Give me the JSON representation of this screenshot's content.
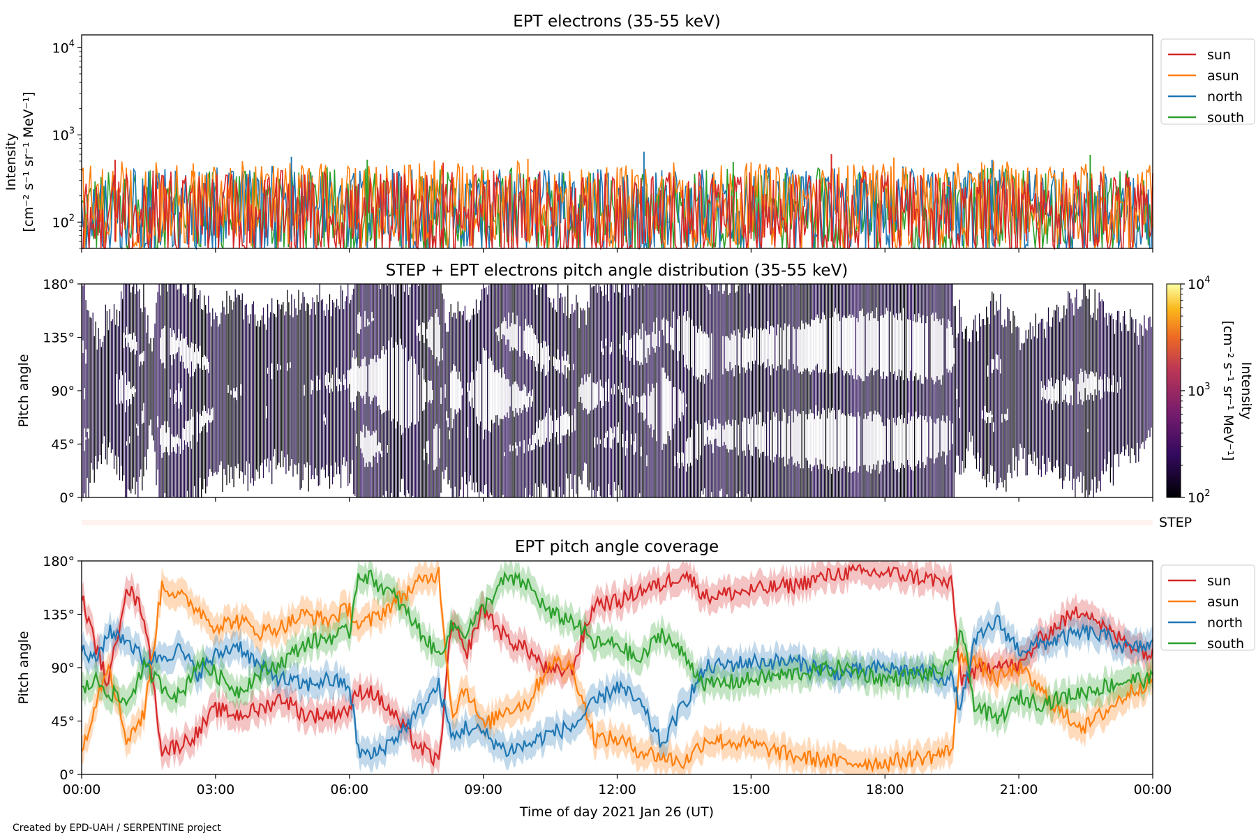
{
  "footer": {
    "credit": "Created by EPD-UAH / SERPENTINE project"
  },
  "colors": {
    "sun": "#d62728",
    "asun": "#ff7f0e",
    "north": "#1f77b4",
    "south": "#2ca02c"
  },
  "chart_data": [
    {
      "type": "line",
      "title": "EPT electrons (35-55 keV)",
      "ylabel": [
        "Intensity",
        "[cm⁻² s⁻¹ sr⁻¹ MeV⁻¹]"
      ],
      "yscale": "log",
      "ylim": [
        50,
        14000
      ],
      "yticks": [
        100,
        1000,
        10000
      ],
      "ytick_labels": [
        [
          "10",
          "2"
        ],
        [
          "10",
          "3"
        ],
        [
          "10",
          "4"
        ]
      ],
      "legend": "outside-right-top",
      "series": [
        {
          "name": "sun",
          "color": "#d62728",
          "baseline": 110,
          "spread": 0.55
        },
        {
          "name": "asun",
          "color": "#ff7f0e",
          "baseline": 150,
          "spread": 0.5
        },
        {
          "name": "north",
          "color": "#1f77b4",
          "baseline": 130,
          "spread": 0.5
        },
        {
          "name": "south",
          "color": "#2ca02c",
          "baseline": 125,
          "spread": 0.5
        }
      ],
      "draw_order": [
        "south",
        "north",
        "asun",
        "sun"
      ],
      "peak_points": [
        {
          "x": 0.75,
          "y": 520
        },
        {
          "x": 2.5,
          "y": 470
        },
        {
          "x": 4.7,
          "y": 560
        },
        {
          "x": 6.4,
          "y": 520
        },
        {
          "x": 8.1,
          "y": 480
        },
        {
          "x": 10.0,
          "y": 530
        },
        {
          "x": 12.6,
          "y": 640
        },
        {
          "x": 14.6,
          "y": 490
        },
        {
          "x": 16.8,
          "y": 600
        },
        {
          "x": 18.2,
          "y": 550
        },
        {
          "x": 20.4,
          "y": 520
        },
        {
          "x": 22.6,
          "y": 590
        }
      ]
    },
    {
      "type": "heatmap",
      "title": "STEP + EPT electrons pitch angle distribution (35-55 keV)",
      "ylabel": "Pitch angle",
      "ylim": [
        0,
        180
      ],
      "yticks": [
        0,
        45,
        90,
        135,
        180
      ],
      "ytick_labels": [
        "0°",
        "45°",
        "90°",
        "135°",
        "180°"
      ],
      "colorbar": {
        "label": [
          "Intensity",
          "[cm⁻² s⁻¹ sr⁻¹ MeV⁻¹]"
        ],
        "scale": "log",
        "range": [
          100,
          10000
        ],
        "tick_labels": [
          [
            "10",
            "2"
          ],
          [
            "10",
            "3"
          ],
          [
            "10",
            "4"
          ]
        ]
      }
    },
    {
      "type": "bar",
      "label": "STEP"
    },
    {
      "type": "line",
      "title": "EPT pitch angle coverage",
      "ylabel": "Pitch angle",
      "xlabel": "Time of day 2021 Jan 26 (UT)",
      "ylim": [
        0,
        180
      ],
      "yticks": [
        0,
        45,
        90,
        135,
        180
      ],
      "ytick_labels": [
        "0°",
        "45°",
        "90°",
        "135°",
        "180°"
      ],
      "xlim": [
        0,
        24
      ],
      "xticks": [
        0,
        3,
        6,
        9,
        12,
        15,
        18,
        21,
        24
      ],
      "xtick_labels": [
        "00:00",
        "03:00",
        "06:00",
        "09:00",
        "12:00",
        "15:00",
        "18:00",
        "21:00",
        "00:00"
      ],
      "legend": "outside-right-top",
      "band_halfwidth": 12,
      "series": [
        {
          "name": "sun",
          "color": "#d62728",
          "x": [
            0,
            0.3,
            0.6,
            1.0,
            1.4,
            1.8,
            2.2,
            2.6,
            3.0,
            3.5,
            4.0,
            4.5,
            5.0,
            5.5,
            6.0,
            6.2,
            6.5,
            7.0,
            7.5,
            8.0,
            8.3,
            8.6,
            9.0,
            9.5,
            10.0,
            10.5,
            11.0,
            11.5,
            12.0,
            12.5,
            13.0,
            13.5,
            14.0,
            15.0,
            16.0,
            17.0,
            18.0,
            19.0,
            19.5,
            19.7,
            20.0,
            20.5,
            21.0,
            21.5,
            22.0,
            22.5,
            23.0,
            23.5,
            24.0
          ],
          "y": [
            150,
            110,
            75,
            160,
            135,
            20,
            25,
            35,
            55,
            50,
            55,
            65,
            50,
            50,
            55,
            70,
            70,
            50,
            25,
            10,
            130,
            100,
            140,
            115,
            105,
            85,
            90,
            145,
            145,
            155,
            160,
            170,
            150,
            155,
            160,
            170,
            170,
            165,
            160,
            80,
            85,
            95,
            90,
            115,
            130,
            140,
            120,
            110,
            100
          ]
        },
        {
          "name": "asun",
          "color": "#ff7f0e",
          "x": [
            0,
            0.3,
            0.6,
            1.0,
            1.4,
            1.8,
            2.2,
            2.6,
            3.0,
            3.5,
            4.0,
            4.5,
            5.0,
            5.5,
            6.0,
            6.2,
            6.5,
            7.0,
            7.5,
            8.0,
            8.3,
            8.6,
            9.0,
            9.5,
            10.0,
            10.5,
            11.0,
            11.5,
            12.0,
            12.5,
            13.0,
            13.5,
            14.0,
            15.0,
            16.0,
            17.0,
            18.0,
            19.0,
            19.5,
            19.7,
            20.0,
            20.5,
            21.0,
            21.5,
            22.0,
            22.5,
            23.0,
            23.5,
            24.0
          ],
          "y": [
            20,
            60,
            95,
            30,
            50,
            160,
            150,
            140,
            125,
            130,
            120,
            125,
            135,
            130,
            140,
            125,
            130,
            145,
            160,
            170,
            50,
            75,
            40,
            55,
            60,
            95,
            90,
            30,
            30,
            20,
            15,
            10,
            30,
            25,
            15,
            10,
            10,
            15,
            20,
            100,
            95,
            80,
            90,
            70,
            50,
            40,
            55,
            70,
            80
          ]
        },
        {
          "name": "north",
          "color": "#1f77b4",
          "x": [
            0,
            0.3,
            0.6,
            1.0,
            1.4,
            1.8,
            2.2,
            2.6,
            3.0,
            3.5,
            4.0,
            4.5,
            5.0,
            5.5,
            6.0,
            6.2,
            6.5,
            7.0,
            7.5,
            8.0,
            8.3,
            8.6,
            9.0,
            9.5,
            10.0,
            10.5,
            11.0,
            11.5,
            12.0,
            12.5,
            13.0,
            13.5,
            14.0,
            15.0,
            16.0,
            17.0,
            18.0,
            19.0,
            19.5,
            19.7,
            20.0,
            20.5,
            21.0,
            21.5,
            22.0,
            22.5,
            23.0,
            23.5,
            24.0
          ],
          "y": [
            105,
            95,
            120,
            115,
            95,
            100,
            105,
            85,
            100,
            110,
            90,
            80,
            75,
            80,
            75,
            20,
            15,
            30,
            50,
            75,
            30,
            40,
            35,
            20,
            25,
            35,
            40,
            60,
            75,
            60,
            25,
            60,
            90,
            95,
            95,
            85,
            90,
            85,
            80,
            55,
            110,
            130,
            105,
            110,
            115,
            120,
            115,
            105,
            110
          ]
        },
        {
          "name": "south",
          "color": "#2ca02c",
          "x": [
            0,
            0.3,
            0.6,
            1.0,
            1.4,
            1.8,
            2.2,
            2.6,
            3.0,
            3.5,
            4.0,
            4.5,
            5.0,
            5.5,
            6.0,
            6.2,
            6.5,
            7.0,
            7.5,
            8.0,
            8.3,
            8.6,
            9.0,
            9.5,
            10.0,
            10.5,
            11.0,
            11.5,
            12.0,
            12.5,
            13.0,
            13.5,
            14.0,
            15.0,
            16.0,
            17.0,
            18.0,
            19.0,
            19.5,
            19.7,
            20.0,
            20.5,
            21.0,
            21.5,
            22.0,
            22.5,
            23.0,
            23.5,
            24.0
          ],
          "y": [
            70,
            80,
            70,
            60,
            90,
            75,
            65,
            95,
            85,
            70,
            85,
            95,
            110,
            115,
            120,
            170,
            165,
            150,
            125,
            100,
            125,
            120,
            140,
            165,
            160,
            135,
            130,
            110,
            110,
            95,
            120,
            100,
            75,
            80,
            85,
            90,
            80,
            85,
            90,
            125,
            60,
            45,
            65,
            60,
            65,
            70,
            75,
            80,
            80
          ]
        }
      ]
    }
  ]
}
